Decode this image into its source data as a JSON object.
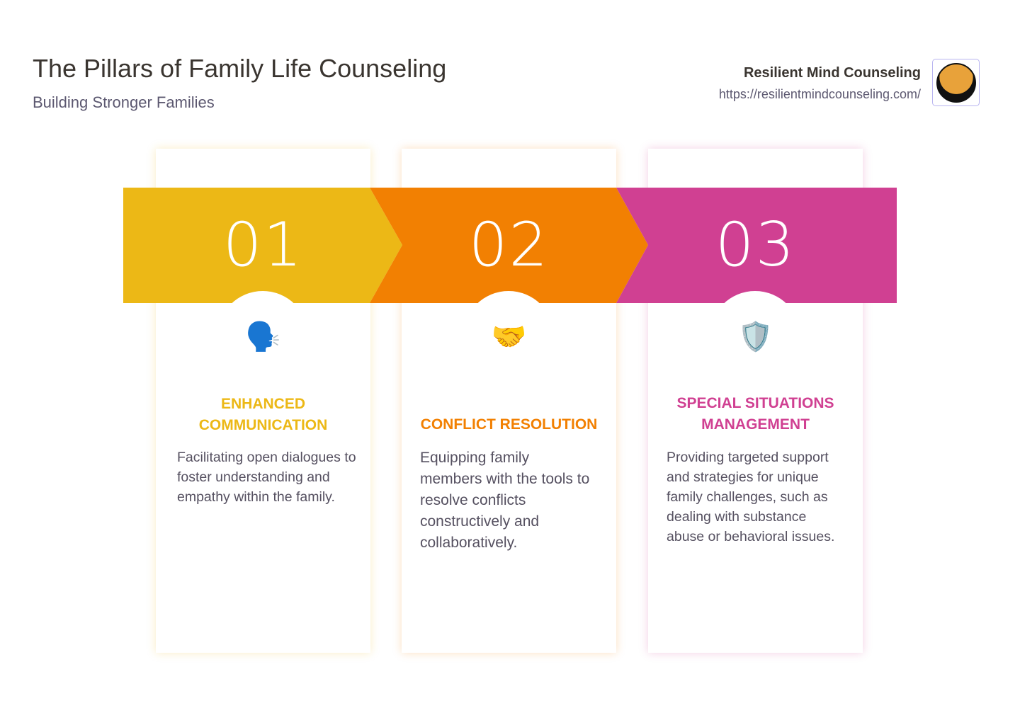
{
  "header": {
    "title": "The Pillars of Family Life Counseling",
    "subtitle": "Building Stronger Families"
  },
  "brand": {
    "name": "Resilient Mind Counseling",
    "url": "https://resilientmindcounseling.com/",
    "logo_icon": "tree-mountain-sun-logo"
  },
  "colors": {
    "pillar1": "#ecb816",
    "pillar2": "#f28002",
    "pillar3": "#d04092"
  },
  "pillars": [
    {
      "number": "01",
      "icon": "speaking-head-icon",
      "glyph": "🗣️",
      "title": "ENHANCED COMMUNICATION",
      "description": "Facilitating open dialogues to foster understanding and empathy within the family."
    },
    {
      "number": "02",
      "icon": "handshake-icon",
      "glyph": "🤝",
      "title": "CONFLICT RESOLUTION",
      "description": "Equipping family members with the tools to resolve conflicts constructively and collaboratively."
    },
    {
      "number": "03",
      "icon": "shield-icon",
      "glyph": "🛡️",
      "title": "SPECIAL SITUATIONS MANAGEMENT",
      "description": "Providing targeted support and strategies for unique family challenges, such as dealing with substance abuse or behavioral issues."
    }
  ]
}
